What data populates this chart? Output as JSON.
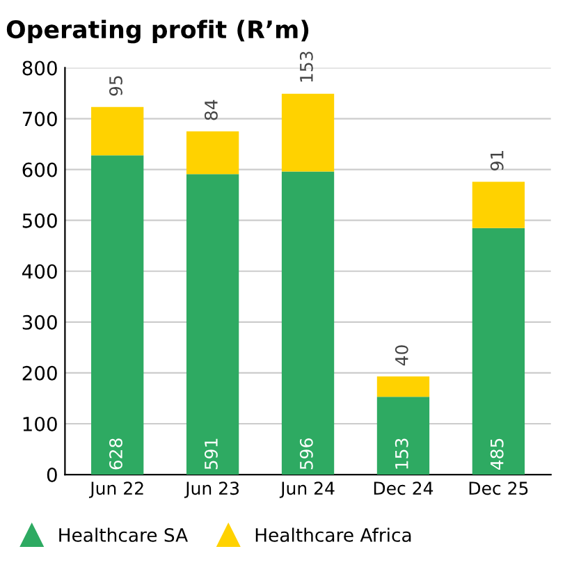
{
  "chart_data": {
    "type": "bar",
    "title": "Operating profit (R’m)",
    "stacked": true,
    "data_labels": true,
    "grid": "y",
    "legend": "bottom",
    "categories": [
      "Jun 22",
      "Jun 23",
      "Jun 24",
      "Dec 24",
      "Dec 25"
    ],
    "series": [
      {
        "name": "Healthcare SA",
        "color": "#2eaa62",
        "values": [
          628,
          591,
          596,
          153,
          485
        ]
      },
      {
        "name": "Healthcare Africa",
        "color": "#ffd200",
        "values": [
          95,
          84,
          153,
          40,
          91
        ]
      }
    ],
    "ylim": [
      0,
      800
    ],
    "yticks": [
      0,
      100,
      200,
      300,
      400,
      500,
      600,
      700,
      800
    ]
  }
}
